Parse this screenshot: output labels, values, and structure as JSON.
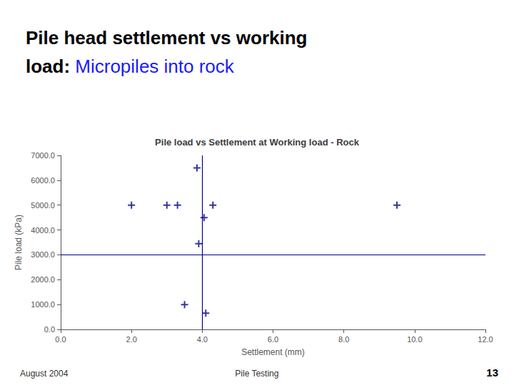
{
  "chart_data": {
    "type": "scatter",
    "slide_title": [
      "Pile head settlement vs working",
      "load:"
    ],
    "slide_subtitle": " Micropiles into rock",
    "title": "Pile load vs Settlement at Working load - Rock",
    "xlabel": "Settlement (mm)",
    "ylabel": "Pile load (kPa)",
    "x": [
      2.0,
      3.0,
      3.3,
      3.5,
      3.85,
      3.9,
      4.05,
      4.1,
      4.3,
      9.5
    ],
    "values": [
      5000,
      5000,
      5000,
      1000,
      6500,
      3450,
      4500,
      650,
      5000,
      5000
    ],
    "color": "#00008b",
    "marker": "plus",
    "hline_y": 3000.0,
    "vline_x": 4.0,
    "xlim": [
      0.0,
      12.0
    ],
    "ylim": [
      0.0,
      7000.0
    ],
    "xticks": [
      {
        "value": 0,
        "label": "0.0"
      },
      {
        "value": 2,
        "label": "2.0"
      },
      {
        "value": 4,
        "label": "4.0"
      },
      {
        "value": 6,
        "label": "6.0"
      },
      {
        "value": 8,
        "label": "8.0"
      },
      {
        "value": 10,
        "label": "10.0"
      },
      {
        "value": 12,
        "label": "12.0"
      }
    ],
    "yticks": [
      {
        "value": 0,
        "label": "0.0"
      },
      {
        "value": 1000,
        "label": "1000.0"
      },
      {
        "value": 2000,
        "label": "2000.0"
      },
      {
        "value": 3000,
        "label": "3000.0"
      },
      {
        "value": 4000,
        "label": "4000.0"
      },
      {
        "value": 5000,
        "label": "5000.0"
      },
      {
        "value": 6000,
        "label": "6000.0"
      },
      {
        "value": 7000,
        "label": "7000.0"
      }
    ],
    "grid": false,
    "footer_left": "August 2004",
    "footer_center": "Pile Testing",
    "footer_right": "13"
  }
}
